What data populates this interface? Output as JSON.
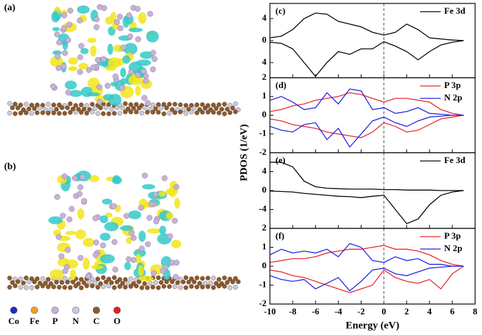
{
  "structures": {
    "panels": [
      "(a)",
      "(b)"
    ],
    "legend": [
      {
        "label": "Co",
        "color": "#1f2fc4"
      },
      {
        "label": "Fe",
        "color": "#f0a020"
      },
      {
        "label": "P",
        "color": "#c9b2d6"
      },
      {
        "label": "N",
        "color": "#c8cce0"
      },
      {
        "label": "C",
        "color": "#8a5a30"
      },
      {
        "label": "O",
        "color": "#e02020"
      }
    ]
  },
  "chart_data": [
    {
      "type": "line",
      "panel_label": "(c)",
      "vline": 0,
      "x": [
        -10,
        -9,
        -8,
        -7,
        -6,
        -5,
        -4,
        -3,
        -2,
        -1,
        0,
        1,
        2,
        3,
        4,
        5,
        6,
        7
      ],
      "series": [
        {
          "name": "Fe 3d",
          "color": "#000000",
          "values": [
            0.5,
            0.8,
            2,
            4,
            5,
            4.8,
            3.5,
            3,
            2.5,
            1.5,
            1,
            1.5,
            3,
            2,
            0.5,
            0.3,
            0.1,
            0
          ]
        },
        {
          "color": "#000000",
          "values": [
            -0.3,
            -0.5,
            -1.5,
            -4,
            -6.5,
            -4,
            -2,
            -2.5,
            -1.5,
            -1.5,
            -0.2,
            -1,
            -2,
            -3.5,
            -2,
            -0.8,
            -0.3,
            0
          ]
        }
      ],
      "xlim": [
        -10,
        8
      ],
      "xticks": [
        -10,
        -8,
        -6,
        -4,
        -2,
        0,
        2,
        4,
        6,
        8
      ],
      "ylim": [
        -6.75,
        6.75
      ],
      "yticks": [
        4,
        0,
        {
          "value": -4,
          "label": "4"
        }
      ]
    },
    {
      "type": "line",
      "panel_label": "(d)",
      "vline": 0,
      "x": [
        -10,
        -9,
        -8,
        -7,
        -6,
        -5,
        -4,
        -3,
        -2,
        -1,
        0,
        1,
        2,
        3,
        4,
        5,
        6,
        7
      ],
      "series": [
        {
          "name": "P 3p",
          "color": "#e8282a",
          "values": [
            0.2,
            0.3,
            0.5,
            0.6,
            0.8,
            0.9,
            1.0,
            1.2,
            1.1,
            0.9,
            0.7,
            0.9,
            0.9,
            0.8,
            0.7,
            0.3,
            0.1,
            0
          ]
        },
        {
          "name": "N 2p",
          "color": "#1f24e0",
          "values": [
            0.8,
            1.0,
            0.7,
            0.3,
            0.4,
            1.2,
            0.6,
            1.4,
            1.3,
            0.3,
            0.4,
            0.1,
            0.2,
            0.4,
            0.1,
            0.05,
            0,
            0
          ]
        },
        {
          "color": "#e8282a",
          "values": [
            -0.2,
            -0.3,
            -0.5,
            -0.6,
            -0.7,
            -0.9,
            -1.0,
            -1.1,
            -1.2,
            -0.9,
            -0.4,
            -0.6,
            -0.9,
            -0.8,
            -0.5,
            -0.2,
            -0.1,
            0
          ]
        },
        {
          "color": "#1f24e0",
          "values": [
            -0.6,
            -0.8,
            -0.9,
            -0.5,
            -0.4,
            -1.3,
            -0.7,
            -1.7,
            -1.0,
            -0.3,
            -0.1,
            -0.4,
            -0.6,
            -0.3,
            -0.1,
            -0.05,
            0,
            0
          ]
        }
      ],
      "xlim": [
        -10,
        8
      ],
      "xticks": [
        -10,
        -8,
        -6,
        -4,
        -2,
        0,
        2,
        4,
        6,
        8
      ],
      "ylim": [
        -2,
        2
      ],
      "yticks": [
        2,
        1,
        0,
        -1,
        -2
      ]
    },
    {
      "type": "line",
      "panel_label": "(e)",
      "vline": 0,
      "x": [
        -10,
        -9,
        -8,
        -7,
        -6,
        -5,
        -4,
        -3,
        -2,
        -1,
        0,
        1,
        2,
        3,
        4,
        5,
        6,
        7
      ],
      "series": [
        {
          "name": "Fe 3d",
          "color": "#000000",
          "values": [
            6,
            6,
            5,
            2,
            0.8,
            0.5,
            0.4,
            0.3,
            0.3,
            0.3,
            0.2,
            0.2,
            0.1,
            0.1,
            0.1,
            0,
            0,
            0
          ]
        },
        {
          "color": "#000000",
          "values": [
            -0.1,
            -0.2,
            -0.3,
            -0.6,
            -0.8,
            -1.0,
            -1.2,
            -1.3,
            -1.5,
            -1.2,
            -1,
            -4,
            -7,
            -6,
            -3,
            -1,
            -0.3,
            0
          ]
        }
      ],
      "xlim": [
        -10,
        8
      ],
      "xticks": [
        -10,
        -8,
        -6,
        -4,
        -2,
        0,
        2,
        4,
        6,
        8
      ],
      "ylim": [
        -8,
        8
      ],
      "yticks": [
        4,
        0,
        -4
      ]
    },
    {
      "type": "line",
      "panel_label": "(f)",
      "vline": 0,
      "x": [
        -10,
        -9,
        -8,
        -7,
        -6,
        -5,
        -4,
        -3,
        -2,
        -1,
        0,
        1,
        2,
        3,
        4,
        5,
        6,
        7
      ],
      "series": [
        {
          "name": "P 3p",
          "color": "#e8282a",
          "values": [
            0.2,
            0.3,
            0.4,
            0.4,
            0.5,
            0.7,
            0.8,
            0.9,
            0.9,
            1.0,
            1.1,
            0.9,
            0.9,
            0.8,
            0.6,
            0.3,
            0.1,
            0
          ]
        },
        {
          "name": "N 2p",
          "color": "#1f24e0",
          "values": [
            0.6,
            0.9,
            0.7,
            0.8,
            0.7,
            0.9,
            0.5,
            1.2,
            1.0,
            0.3,
            0.2,
            0.5,
            0.3,
            0.4,
            0.1,
            0.1,
            0,
            0
          ]
        },
        {
          "color": "#e8282a",
          "values": [
            -0.2,
            -0.3,
            -0.5,
            -0.6,
            -0.8,
            -1.0,
            -1.2,
            -1.4,
            -1.2,
            -1.0,
            -0.2,
            -0.6,
            -0.8,
            -0.9,
            -0.7,
            -1.2,
            -0.4,
            0
          ]
        },
        {
          "color": "#1f24e0",
          "values": [
            -0.5,
            -0.7,
            -0.8,
            -0.7,
            -1.2,
            -0.9,
            -0.6,
            -1.3,
            -0.8,
            -0.2,
            -0.1,
            -0.4,
            -0.5,
            -0.3,
            -0.1,
            -0.05,
            0,
            0
          ]
        }
      ],
      "xlim": [
        -10,
        8
      ],
      "xticks": [
        -10,
        -8,
        -6,
        -4,
        -2,
        0,
        2,
        4,
        6,
        8
      ],
      "ylim": [
        -2,
        2
      ],
      "yticks": [
        2,
        1,
        0,
        -1,
        -2
      ],
      "xlabel": "Energy (eV)",
      "ylabel": "PDOS (1/eV)"
    }
  ]
}
